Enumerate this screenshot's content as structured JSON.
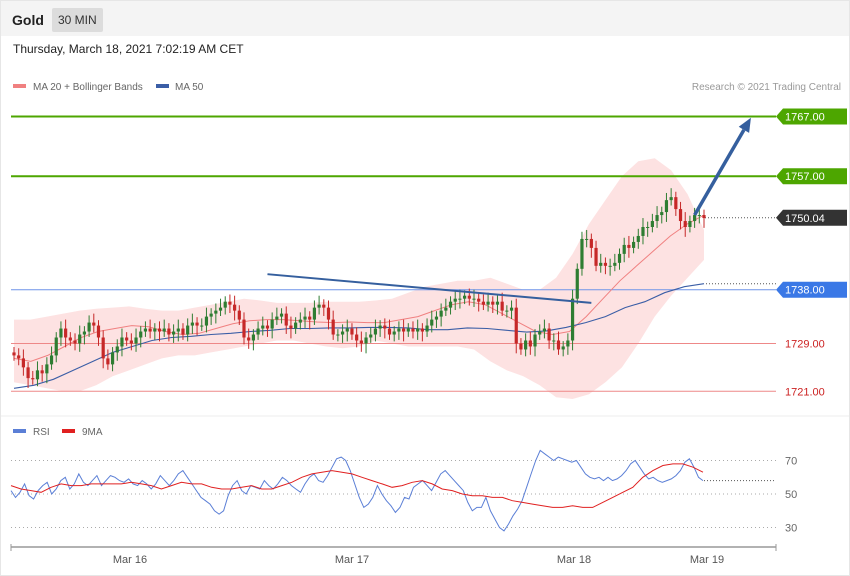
{
  "header": {
    "instrument": "Gold",
    "timeframe": "30 MIN",
    "datetime": "Thursday, March 18, 2021 7:02:19 AM CET"
  },
  "copyright": "Research © 2021 Trading Central",
  "colors": {
    "bull": "#2e7d32",
    "bear": "#c62828",
    "bollinger_band": "#fde2e2",
    "ma20": "#f08080",
    "ma50": "#3b5ea6",
    "target": "#4da600",
    "pivot": "#3a78e6",
    "support": "#e06070",
    "current": "#333333",
    "rsi": "#5b7fd6",
    "rsi_ma": "#e02020",
    "trendline": "#355f9e"
  },
  "chart_data": [
    {
      "type": "candlestick",
      "title": "",
      "legend": [
        {
          "label": "MA 20 + Bollinger Bands",
          "color": "#f08080"
        },
        {
          "label": "MA 50",
          "color": "#3b5ea6"
        }
      ],
      "legend_position": "top-left",
      "grid": false,
      "ylim": [
        1718.7,
        1770.6
      ],
      "x_ticks": [
        "Mar 16",
        "Mar 17",
        "Mar 18",
        "Mar 19"
      ],
      "levels": [
        {
          "value": 1767.0,
          "label": "1767.00",
          "role": "target"
        },
        {
          "value": 1757.0,
          "label": "1757.00",
          "role": "target"
        },
        {
          "value": 1750.04,
          "label": "1750.04",
          "role": "current"
        },
        {
          "value": 1738.0,
          "label": "1738.00",
          "role": "pivot"
        },
        {
          "value": 1729.0,
          "label": "1729.00",
          "role": "support"
        },
        {
          "value": 1721.0,
          "label": "1721.00",
          "role": "support"
        }
      ],
      "closes": [
        1727.0,
        1726.5,
        1725.0,
        1723.2,
        1723.0,
        1724.5,
        1724.0,
        1725.5,
        1727.0,
        1730.0,
        1731.5,
        1730.0,
        1729.5,
        1729.0,
        1730.5,
        1731.0,
        1732.5,
        1732.0,
        1730.0,
        1726.5,
        1725.5,
        1727.5,
        1728.5,
        1730.0,
        1729.5,
        1729.0,
        1730.0,
        1731.0,
        1731.5,
        1731.0,
        1731.5,
        1731.0,
        1731.5,
        1730.5,
        1731.0,
        1731.5,
        1730.5,
        1732.0,
        1732.5,
        1732.0,
        1732.0,
        1733.5,
        1734.0,
        1734.5,
        1735.0,
        1736.0,
        1735.5,
        1734.5,
        1733.0,
        1730.0,
        1729.5,
        1730.5,
        1731.5,
        1732.0,
        1731.5,
        1733.0,
        1733.5,
        1734.0,
        1732.0,
        1731.5,
        1732.5,
        1733.0,
        1733.5,
        1733.0,
        1735.0,
        1735.5,
        1735.0,
        1733.0,
        1730.5,
        1730.5,
        1731.0,
        1731.5,
        1730.5,
        1729.5,
        1729.0,
        1730.0,
        1730.5,
        1731.5,
        1732.0,
        1731.5,
        1730.5,
        1731.0,
        1731.5,
        1731.0,
        1731.5,
        1731.0,
        1731.5,
        1731.0,
        1732.0,
        1733.0,
        1733.5,
        1734.5,
        1735.0,
        1736.0,
        1736.5,
        1736.5,
        1737.0,
        1736.5,
        1736.5,
        1736.0,
        1735.5,
        1736.0,
        1735.5,
        1736.0,
        1734.5,
        1734.5,
        1735.0,
        1729.0,
        1728.0,
        1729.5,
        1728.5,
        1730.5,
        1731.0,
        1731.5,
        1729.5,
        1729.5,
        1728.0,
        1728.5,
        1729.5,
        1736.5,
        1741.5,
        1746.5,
        1746.5,
        1745.0,
        1742.0,
        1742.5,
        1742.0,
        1742.0,
        1742.5,
        1744.0,
        1745.5,
        1745.0,
        1746.0,
        1747.0,
        1748.5,
        1748.5,
        1749.5,
        1750.5,
        1751.0,
        1753.0,
        1753.5,
        1751.5,
        1749.5,
        1748.5,
        1749.5,
        1750.5,
        1750.5,
        1750.0
      ],
      "series": [
        {
          "name": "MA 50",
          "values": [
            1721.5,
            1722.0,
            1723.0,
            1724.5,
            1726.0,
            1727.5,
            1728.5,
            1729.5,
            1730.0,
            1730.2,
            1730.5,
            1730.7,
            1731.0,
            1731.2,
            1731.5,
            1731.5,
            1731.6,
            1731.6,
            1731.7,
            1731.7,
            1731.6,
            1731.3,
            1731.3,
            1731.6,
            1731.5,
            1731.2,
            1730.9,
            1731.1,
            1731.7,
            1732.5,
            1733.5,
            1735.0,
            1736.0,
            1737.5,
            1738.5,
            1739.0
          ]
        },
        {
          "name": "MA 20",
          "values": [
            1726.5,
            1726.0,
            1727.0,
            1728.5,
            1730.0,
            1731.0,
            1731.5,
            1732.0,
            1731.8,
            1731.0,
            1730.5,
            1730.7,
            1731.5,
            1732.3,
            1732.8,
            1733.0,
            1733.0,
            1732.8,
            1732.6,
            1732.5,
            1732.6,
            1732.5,
            1732.5,
            1733.0,
            1733.5,
            1734.5,
            1735.5,
            1736.0,
            1735.5,
            1734.0,
            1732.5,
            1731.0,
            1730.5,
            1731.0,
            1733.5,
            1736.5,
            1739.5,
            1742.0,
            1744.5,
            1747.0,
            1749.0,
            1750.5
          ]
        },
        {
          "name": "BB upper",
          "values": [
            1733.0,
            1733.0,
            1733.5,
            1734.0,
            1734.5,
            1734.8,
            1735.0,
            1735.2,
            1734.8,
            1734.5,
            1734.5,
            1735.0,
            1735.5,
            1736.0,
            1736.5,
            1736.2,
            1735.8,
            1735.8,
            1735.8,
            1736.0,
            1736.0,
            1736.0,
            1736.2,
            1736.5,
            1737.5,
            1738.5,
            1739.0,
            1739.5,
            1739.5,
            1740.0,
            1739.0,
            1738.0,
            1738.0,
            1740.0,
            1744.0,
            1749.0,
            1753.0,
            1757.0,
            1759.5,
            1760.0,
            1758.0,
            1754.0,
            1748.0
          ]
        },
        {
          "name": "BB lower",
          "values": [
            1722.5,
            1722.0,
            1721.5,
            1721.0,
            1721.0,
            1722.0,
            1723.5,
            1724.5,
            1725.5,
            1726.5,
            1727.0,
            1727.0,
            1727.5,
            1728.0,
            1728.5,
            1729.0,
            1729.5,
            1729.5,
            1729.0,
            1728.5,
            1728.2,
            1728.5,
            1729.5,
            1729.0,
            1728.5,
            1728.5,
            1728.5,
            1728.5,
            1728.0,
            1726.0,
            1724.5,
            1723.5,
            1722.0,
            1720.0,
            1719.7,
            1720.5,
            1722.5,
            1725.0,
            1729.0,
            1733.5,
            1737.0,
            1740.0,
            1743.0
          ]
        }
      ],
      "annotations": [
        {
          "kind": "trendline",
          "from": {
            "bar": 54,
            "value": 1740.6
          },
          "to": {
            "bar": 123,
            "value": 1735.8
          }
        },
        {
          "kind": "arrow",
          "from": {
            "bar": 145,
            "value": 1750.5
          },
          "to": {
            "bar": 157,
            "value": 1766.8
          }
        }
      ]
    },
    {
      "type": "line",
      "title": "",
      "legend": [
        {
          "label": "RSI",
          "color": "#5b7fd6"
        },
        {
          "label": "9MA",
          "color": "#e02020"
        }
      ],
      "legend_position": "top-left",
      "ylim": [
        20,
        80
      ],
      "yticks": [
        30,
        50,
        70
      ],
      "series": [
        {
          "name": "RSI",
          "values": [
            52,
            48,
            51,
            56,
            49,
            47,
            52,
            55,
            57,
            50,
            53,
            58,
            60,
            53,
            56,
            62,
            57,
            55,
            58,
            61,
            55,
            58,
            61,
            60,
            58,
            57,
            59,
            56,
            55,
            58,
            56,
            53,
            56,
            61,
            58,
            55,
            58,
            62,
            64,
            60,
            56,
            52,
            48,
            46,
            44,
            40,
            38,
            40,
            49,
            55,
            58,
            52,
            50,
            55,
            54,
            53,
            58,
            55,
            53,
            56,
            60,
            58,
            55,
            53,
            51,
            56,
            60,
            62,
            58,
            57,
            61,
            66,
            71,
            72,
            70,
            64,
            56,
            48,
            42,
            44,
            48,
            55,
            50,
            46,
            43,
            39,
            42,
            48,
            47,
            54,
            56,
            58,
            55,
            52,
            57,
            62,
            64,
            61,
            58,
            55,
            52,
            45,
            40,
            42,
            42,
            48,
            40,
            35,
            30,
            28,
            32,
            37,
            41,
            46,
            54,
            62,
            70,
            76,
            74,
            72,
            70,
            72,
            71,
            70,
            69,
            70,
            66,
            62,
            60,
            59,
            60,
            58,
            60,
            58,
            59,
            61,
            64,
            68,
            70,
            66,
            62,
            59,
            60,
            58,
            57,
            58,
            59,
            61,
            64,
            69,
            71,
            66,
            60,
            58
          ]
        },
        {
          "name": "9MA",
          "values": [
            55,
            53,
            52,
            51,
            54,
            56,
            55,
            55,
            56,
            56,
            56,
            56,
            57,
            56,
            55,
            53,
            55,
            57,
            56,
            56,
            54,
            53,
            53,
            54,
            55,
            53,
            53,
            55,
            57,
            60,
            62,
            63,
            64,
            63,
            62,
            60,
            58,
            56,
            54,
            55,
            57,
            58,
            56,
            53,
            52,
            50,
            49,
            49,
            48,
            48,
            46,
            45,
            44,
            43,
            42,
            42,
            43,
            42,
            42,
            45,
            48,
            51,
            54,
            60,
            64,
            67,
            68,
            68,
            66,
            63
          ]
        }
      ]
    }
  ]
}
